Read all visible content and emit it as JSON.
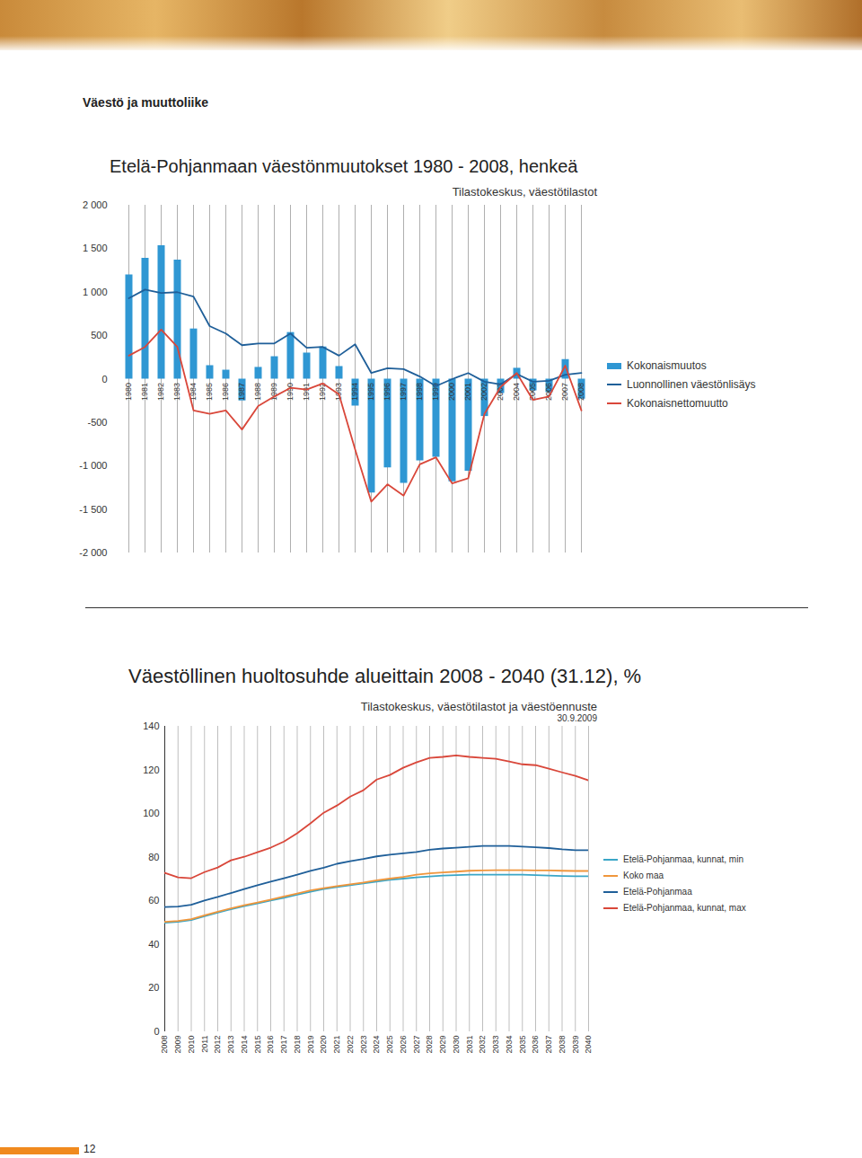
{
  "page": {
    "heading": "Väestö ja muuttoliike",
    "page_number": "12"
  },
  "chart_data": [
    {
      "type": "bar",
      "title": "Etelä-Pohjanmaan väestönmuutokset 1980 - 2008, henkeä",
      "subtitle": "Tilastokeskus, väestötilastot",
      "categories": [
        "1980",
        "1981",
        "1982",
        "1983",
        "1984",
        "1985",
        "1986",
        "1987",
        "1988",
        "1989",
        "1990",
        "1991",
        "1992",
        "1993",
        "1994",
        "1995",
        "1996",
        "1997",
        "1998",
        "1999",
        "2000",
        "2001",
        "2002",
        "2003",
        "2004",
        "2005",
        "2006",
        "2007",
        "2008"
      ],
      "series": [
        {
          "name": "Kokonaismuutos",
          "type": "bar",
          "color": "#2f97d3",
          "values": [
            1200,
            1390,
            1535,
            1370,
            577,
            155,
            103,
            -250,
            135,
            258,
            536,
            300,
            370,
            145,
            -310,
            -1310,
            -1020,
            -1200,
            -940,
            -900,
            -1180,
            -1060,
            -430,
            -165,
            125,
            -135,
            -155,
            225,
            -230
          ]
        },
        {
          "name": "Luonnollinen väestönlisäys",
          "type": "line",
          "color": "#1f5f99",
          "values": [
            930,
            1030,
            990,
            1000,
            950,
            610,
            525,
            390,
            410,
            410,
            525,
            360,
            370,
            270,
            400,
            70,
            125,
            115,
            30,
            -80,
            0,
            70,
            -30,
            -60,
            60,
            -30,
            -20,
            50,
            70
          ]
        },
        {
          "name": "Kokonaisnettomuutto",
          "type": "line",
          "color": "#d9473a",
          "values": [
            270,
            370,
            570,
            370,
            -360,
            -400,
            -360,
            -580,
            -310,
            -200,
            -100,
            -120,
            -50,
            -175,
            -810,
            -1410,
            -1210,
            -1340,
            -980,
            -900,
            -1200,
            -1140,
            -400,
            -90,
            70,
            -240,
            -200,
            155,
            -360
          ]
        }
      ],
      "ylim": [
        -2000,
        2000
      ],
      "yticks": [
        {
          "value": -2000,
          "label": "-2 000"
        },
        {
          "value": -1500,
          "label": "-1 500"
        },
        {
          "value": -1000,
          "label": "-1 000"
        },
        -500,
        0,
        500,
        {
          "value": 1000,
          "label": "1 000"
        },
        {
          "value": 1500,
          "label": "1 500"
        },
        {
          "value": 2000,
          "label": "2 000"
        }
      ],
      "grid": true,
      "legend": "right"
    },
    {
      "type": "line",
      "title": "Väestöllinen huoltosuhde alueittain 2008 - 2040 (31.12), %",
      "subtitle": [
        "Tilastokeskus, väestötilastot ja väestöennuste",
        "30.9.2009"
      ],
      "x": [
        2008,
        2009,
        2010,
        2011,
        2012,
        2013,
        2014,
        2015,
        2016,
        2017,
        2018,
        2019,
        2020,
        2021,
        2022,
        2023,
        2024,
        2025,
        2026,
        2027,
        2028,
        2029,
        2030,
        2031,
        2032,
        2033,
        2034,
        2035,
        2036,
        2037,
        2038,
        2039,
        2040
      ],
      "series": [
        {
          "name": "Etelä-Pohjanmaa, kunnat, min",
          "color": "#3aa6c7",
          "values": [
            50,
            50.4,
            51.2,
            53,
            54.6,
            56.2,
            57.6,
            58.8,
            60.2,
            61.4,
            62.8,
            64.2,
            65.4,
            66.4,
            67.2,
            68,
            68.8,
            69.6,
            70.2,
            70.8,
            71.2,
            71.6,
            71.8,
            72,
            72,
            72,
            72,
            72,
            71.8,
            71.6,
            71.4,
            71.3,
            71.3
          ]
        },
        {
          "name": "Koko maa",
          "color": "#f0963c",
          "values": [
            50.4,
            50.8,
            51.6,
            53.4,
            55,
            56.6,
            58,
            59.2,
            60.6,
            62,
            63.4,
            64.8,
            65.8,
            66.8,
            67.6,
            68.4,
            69.4,
            70.2,
            71,
            72,
            72.6,
            73,
            73.4,
            73.8,
            74,
            74.1,
            74.1,
            74.1,
            74,
            74,
            73.8,
            73.7,
            73.7
          ]
        },
        {
          "name": "Etelä-Pohjanmaa",
          "color": "#1f5f99",
          "values": [
            57.2,
            57.4,
            58.2,
            60.2,
            61.8,
            63.6,
            65.4,
            67.2,
            68.8,
            70.4,
            72,
            73.8,
            75.2,
            77,
            78.2,
            79.2,
            80.4,
            81.2,
            81.8,
            82.4,
            83.4,
            84,
            84.4,
            84.8,
            85.2,
            85.2,
            85.2,
            84.9,
            84.6,
            84.2,
            83.6,
            83.2,
            83.2
          ]
        },
        {
          "name": "Etelä-Pohjanmaa, kunnat, max",
          "color": "#d9473a",
          "values": [
            72.8,
            70.8,
            70.4,
            73.2,
            75.3,
            78.6,
            80.2,
            82.3,
            84.4,
            87.2,
            91,
            95.5,
            100.4,
            103.7,
            107.8,
            110.7,
            115.6,
            117.7,
            121,
            123.5,
            125.5,
            126,
            126.7,
            126,
            125.5,
            125.1,
            123.9,
            122.6,
            122.2,
            120.6,
            118.9,
            117.3,
            115.2
          ]
        }
      ],
      "xlim": [
        2008,
        2040
      ],
      "xticks": [
        2008,
        2009,
        2010,
        2011,
        2012,
        2013,
        2014,
        2015,
        2016,
        2017,
        2018,
        2019,
        2020,
        2021,
        2022,
        2023,
        2024,
        2025,
        2026,
        2027,
        2028,
        2029,
        2030,
        2031,
        2032,
        2033,
        2034,
        2035,
        2036,
        2037,
        2038,
        2039,
        2040
      ],
      "ylim": [
        0,
        140
      ],
      "yticks": [
        0,
        20,
        40,
        60,
        80,
        100,
        120,
        140
      ],
      "grid": true,
      "legend": "right"
    }
  ]
}
